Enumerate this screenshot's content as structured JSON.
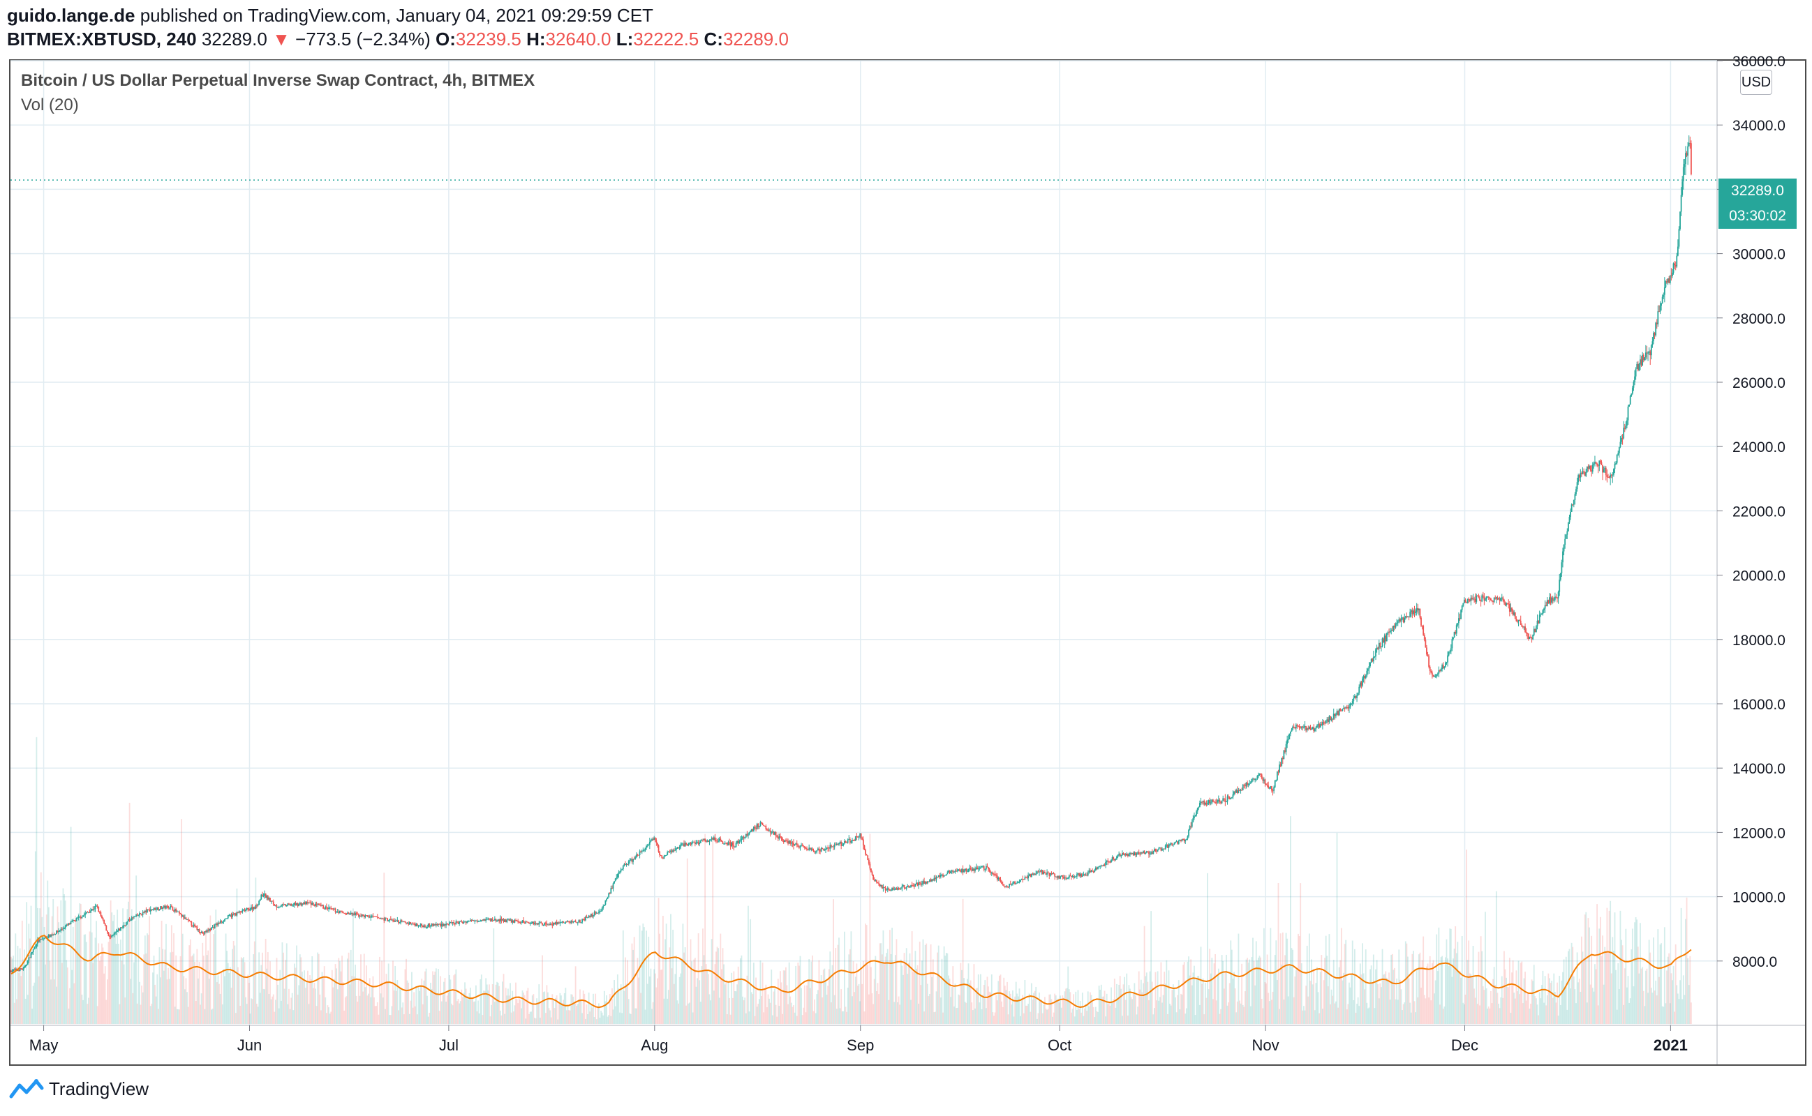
{
  "header": {
    "author": "guido.lange.de",
    "published_text": "published on TradingView.com, January 04, 2021 09:29:59 CET",
    "symbol": "BITMEX:XBTUSD, 240",
    "last": "32289.0",
    "change_arrow": "▼",
    "change": "−773.5 (−2.34%)",
    "o_label": "O:",
    "o_value": "32239.5",
    "h_label": "H:",
    "h_value": "32640.0",
    "l_label": "L:",
    "l_value": "32222.5",
    "c_label": "C:",
    "c_value": "32289.0"
  },
  "legend": {
    "title": "Bitcoin / US Dollar Perpetual Inverse Swap Contract, 4h, BITMEX",
    "indicator": "Vol (20)"
  },
  "currency_button": "USD",
  "price_label": {
    "value": "32289.0",
    "countdown": "03:30:02"
  },
  "brand": {
    "name": "TradingView"
  },
  "colors": {
    "up": "#26a69a",
    "down": "#ef5350",
    "vol_ma": "#f57c00",
    "grid": "#e1ecf2",
    "price_label_bg": "#26a69a"
  },
  "chart_data": {
    "type": "candlestick",
    "symbol": "BITMEX:XBTUSD",
    "interval": "4h",
    "y_axis": {
      "range": [
        6000,
        36000
      ],
      "ticks": [
        8000,
        10000,
        12000,
        14000,
        16000,
        18000,
        20000,
        22000,
        24000,
        26000,
        28000,
        30000,
        32000,
        34000,
        36000
      ],
      "tick_labels": [
        "8000.0",
        "10000.0",
        "12000.0",
        "14000.0",
        "16000.0",
        "18000.0",
        "20000.0",
        "22000.0",
        "24000.0",
        "26000.0",
        "28000.0",
        "30000.0",
        "32000.0",
        "34000.0",
        "36000.0"
      ],
      "side": "right"
    },
    "x_axis": {
      "range": [
        "2020-04-26",
        "2021-01-08"
      ],
      "ticks": [
        "2020-05-01",
        "2020-06-01",
        "2020-07-01",
        "2020-08-01",
        "2020-09-01",
        "2020-10-01",
        "2020-11-01",
        "2020-12-01",
        "2021-01-01"
      ],
      "tick_labels": [
        "May",
        "Jun",
        "Jul",
        "Aug",
        "Sep",
        "Oct",
        "Nov",
        "Dec",
        "2021"
      ]
    },
    "grid": true,
    "last_price": 32289.0,
    "price_path": [
      [
        "2020-04-26",
        7700
      ],
      [
        "2020-04-28",
        7750
      ],
      [
        "2020-04-30",
        8600
      ],
      [
        "2020-05-03",
        8900
      ],
      [
        "2020-05-06",
        9300
      ],
      [
        "2020-05-09",
        9700
      ],
      [
        "2020-05-11",
        8700
      ],
      [
        "2020-05-14",
        9300
      ],
      [
        "2020-05-17",
        9600
      ],
      [
        "2020-05-20",
        9700
      ],
      [
        "2020-05-25",
        8850
      ],
      [
        "2020-05-29",
        9400
      ],
      [
        "2020-06-02",
        9700
      ],
      [
        "2020-06-03",
        10100
      ],
      [
        "2020-06-05",
        9700
      ],
      [
        "2020-06-10",
        9800
      ],
      [
        "2020-06-15",
        9500
      ],
      [
        "2020-06-20",
        9350
      ],
      [
        "2020-06-27",
        9100
      ],
      [
        "2020-07-01",
        9150
      ],
      [
        "2020-07-06",
        9300
      ],
      [
        "2020-07-10",
        9250
      ],
      [
        "2020-07-16",
        9150
      ],
      [
        "2020-07-21",
        9250
      ],
      [
        "2020-07-24",
        9600
      ],
      [
        "2020-07-27",
        10900
      ],
      [
        "2020-07-29",
        11200
      ],
      [
        "2020-08-01",
        11800
      ],
      [
        "2020-08-02",
        11200
      ],
      [
        "2020-08-05",
        11600
      ],
      [
        "2020-08-10",
        11800
      ],
      [
        "2020-08-13",
        11600
      ],
      [
        "2020-08-17",
        12300
      ],
      [
        "2020-08-20",
        11800
      ],
      [
        "2020-08-25",
        11400
      ],
      [
        "2020-08-30",
        11700
      ],
      [
        "2020-09-01",
        11900
      ],
      [
        "2020-09-03",
        10500
      ],
      [
        "2020-09-05",
        10200
      ],
      [
        "2020-09-10",
        10400
      ],
      [
        "2020-09-15",
        10800
      ],
      [
        "2020-09-20",
        10900
      ],
      [
        "2020-09-23",
        10300
      ],
      [
        "2020-09-28",
        10800
      ],
      [
        "2020-10-01",
        10600
      ],
      [
        "2020-10-05",
        10700
      ],
      [
        "2020-10-10",
        11300
      ],
      [
        "2020-10-15",
        11400
      ],
      [
        "2020-10-20",
        11800
      ],
      [
        "2020-10-22",
        12900
      ],
      [
        "2020-10-26",
        13000
      ],
      [
        "2020-10-31",
        13800
      ],
      [
        "2020-11-02",
        13300
      ],
      [
        "2020-11-05",
        15300
      ],
      [
        "2020-11-08",
        15200
      ],
      [
        "2020-11-11",
        15600
      ],
      [
        "2020-11-14",
        16000
      ],
      [
        "2020-11-18",
        17800
      ],
      [
        "2020-11-21",
        18500
      ],
      [
        "2020-11-24",
        19000
      ],
      [
        "2020-11-26",
        16800
      ],
      [
        "2020-11-28",
        17200
      ],
      [
        "2020-12-01",
        19200
      ],
      [
        "2020-12-03",
        19300
      ],
      [
        "2020-12-07",
        19200
      ],
      [
        "2020-12-11",
        18000
      ],
      [
        "2020-12-13",
        19100
      ],
      [
        "2020-12-15",
        19400
      ],
      [
        "2020-12-16",
        21000
      ],
      [
        "2020-12-18",
        23000
      ],
      [
        "2020-12-21",
        23500
      ],
      [
        "2020-12-23",
        23000
      ],
      [
        "2020-12-25",
        24500
      ],
      [
        "2020-12-27",
        26500
      ],
      [
        "2020-12-29",
        27000
      ],
      [
        "2020-12-31",
        28900
      ],
      [
        "2021-01-02",
        29800
      ],
      [
        "2021-01-03",
        32900
      ],
      [
        "2021-01-04",
        33500
      ],
      [
        "2021-01-04",
        32289
      ]
    ],
    "vol_ma_path": [
      [
        "2020-04-26",
        0.3
      ],
      [
        "2020-05-01",
        0.55
      ],
      [
        "2020-05-08",
        0.4
      ],
      [
        "2020-05-12",
        0.45
      ],
      [
        "2020-05-20",
        0.35
      ],
      [
        "2020-06-03",
        0.3
      ],
      [
        "2020-06-20",
        0.25
      ],
      [
        "2020-07-10",
        0.15
      ],
      [
        "2020-07-25",
        0.12
      ],
      [
        "2020-08-01",
        0.45
      ],
      [
        "2020-08-10",
        0.3
      ],
      [
        "2020-08-20",
        0.2
      ],
      [
        "2020-09-05",
        0.4
      ],
      [
        "2020-09-20",
        0.18
      ],
      [
        "2020-10-05",
        0.12
      ],
      [
        "2020-10-25",
        0.3
      ],
      [
        "2020-11-05",
        0.35
      ],
      [
        "2020-11-20",
        0.25
      ],
      [
        "2020-11-27",
        0.38
      ],
      [
        "2020-12-05",
        0.25
      ],
      [
        "2020-12-15",
        0.18
      ],
      [
        "2020-12-20",
        0.45
      ],
      [
        "2021-01-01",
        0.35
      ],
      [
        "2021-01-04",
        0.48
      ]
    ]
  }
}
